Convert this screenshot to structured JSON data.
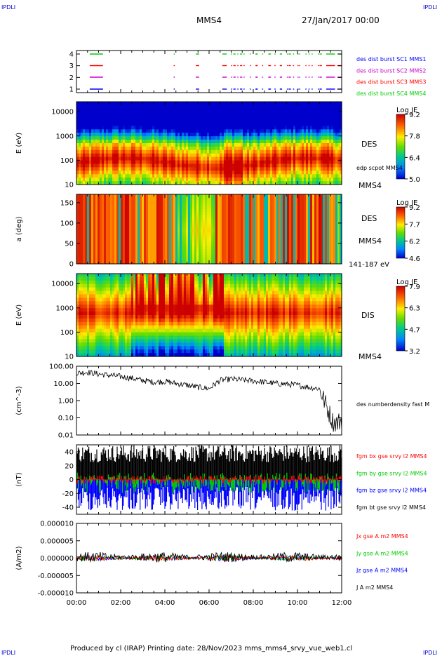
{
  "header": {
    "corner_tl": "IPDLI",
    "corner_tr": "IPDLI",
    "spacecraft": "MMS4",
    "datetime": "27/Jan/2017 00:00"
  },
  "footer": {
    "text": "Produced by cl (IRAP)   Printing date: 28/Nov/2023   mms_mms4_srvy_vue_web1.cl",
    "corner_bl": "IPDLI",
    "corner_br": "IPDLI"
  },
  "time_axis": {
    "ticks": [
      "00:00",
      "02:00",
      "04:00",
      "06:00",
      "08:00",
      "10:00",
      "12:00"
    ],
    "range_hours": [
      0,
      12
    ]
  },
  "colors": {
    "black": "#000000",
    "red": "#ff0000",
    "green": "#00cc00",
    "blue": "#0000ff",
    "magenta": "#cc00cc"
  },
  "chart_data": [
    {
      "type": "timeline",
      "panel": "burst",
      "yticks": [
        "4",
        "3",
        "2",
        "1"
      ],
      "legend": [
        {
          "label": "des dist burst SC1 MMS1",
          "color": "#0000ff"
        },
        {
          "label": "des dist burst SC2 MMS2",
          "color": "#cc00cc"
        },
        {
          "label": "des dist burst SC3 MMS3",
          "color": "#ff0000"
        },
        {
          "label": "des dist burst SC4 MMS4",
          "color": "#00cc00"
        }
      ],
      "segments_hours": [
        [
          0.6,
          1.2
        ],
        [
          4.4,
          4.45
        ],
        [
          5.4,
          5.55
        ],
        [
          6.6,
          6.8
        ],
        [
          7.1,
          7.2
        ],
        [
          7.4,
          7.5
        ],
        [
          8.1,
          8.2
        ],
        [
          8.7,
          8.8
        ],
        [
          9.2,
          9.3
        ],
        [
          9.6,
          9.7
        ],
        [
          10.0,
          10.05
        ],
        [
          10.5,
          10.55
        ],
        [
          11.0,
          11.1
        ],
        [
          11.3,
          11.7
        ],
        [
          11.8,
          12.0
        ]
      ]
    },
    {
      "type": "heatmap",
      "panel": "des-energy",
      "ylabel": "E (eV)",
      "yscale": "log",
      "ylim": [
        10,
        30000
      ],
      "yticks": [
        "10000",
        "1000",
        "100",
        "10"
      ],
      "label": "DES",
      "sublabel": "MMS4",
      "overlay_label": "edp scpot MMS4",
      "colorbar": {
        "title": "Log JE",
        "ticks": [
          "9.2",
          "7.8",
          "6.4",
          "5.0"
        ],
        "range": [
          5.0,
          9.2
        ]
      }
    },
    {
      "type": "heatmap",
      "panel": "des-pitch",
      "ylabel": "a (deg)",
      "ylim": [
        0,
        180
      ],
      "yticks": [
        "150",
        "100",
        "50",
        "0"
      ],
      "label": "DES",
      "sublabel": "MMS4",
      "energy_range": "141-187 eV",
      "colorbar": {
        "title": "Log JE",
        "ticks": [
          "9.2",
          "7.7",
          "6.2",
          "4.6"
        ],
        "range": [
          4.6,
          9.2
        ]
      }
    },
    {
      "type": "heatmap",
      "panel": "dis-energy",
      "ylabel": "E (eV)",
      "yscale": "log",
      "ylim": [
        10,
        30000
      ],
      "yticks": [
        "10000",
        "1000",
        "100",
        "10"
      ],
      "label": "DIS",
      "sublabel": "MMS4",
      "colorbar": {
        "title": "Log JE",
        "ticks": [
          "7.9",
          "6.3",
          "4.7",
          "3.2"
        ],
        "range": [
          3.2,
          7.9
        ]
      }
    },
    {
      "type": "line",
      "panel": "density",
      "ylabel": "(cm^-3)",
      "yscale": "log",
      "ylim": [
        0.01,
        100
      ],
      "yticks": [
        "100.00",
        "10.00",
        "1.00",
        "0.10",
        "0.01"
      ],
      "series": [
        {
          "name": "des numberdensity fast M",
          "color": "#000000",
          "x": [
            0,
            0.5,
            1.0,
            1.5,
            2.0,
            2.5,
            3.0,
            3.5,
            4.0,
            4.5,
            5.0,
            5.5,
            6.0,
            6.5,
            7.0,
            7.5,
            8.0,
            8.5,
            9.0,
            9.5,
            10.0,
            10.5,
            11.0,
            11.3,
            11.6,
            11.8,
            12.0
          ],
          "y": [
            40,
            45,
            35,
            30,
            25,
            20,
            15,
            12,
            13,
            10,
            8,
            6,
            5,
            15,
            18,
            16,
            14,
            12,
            10,
            9,
            8,
            6,
            5,
            0.5,
            0.06,
            0.05,
            0.08
          ]
        }
      ]
    },
    {
      "type": "line",
      "panel": "magnetic-field",
      "ylabel": "(nT)",
      "ylim": [
        -50,
        50
      ],
      "yticks": [
        "40",
        "20",
        "0",
        "-20",
        "-40"
      ],
      "series": [
        {
          "name": "fgm bx gse srvy l2 MMS4",
          "color": "#ff0000"
        },
        {
          "name": "fgm by gse srvy l2 MMS4",
          "color": "#00cc00"
        },
        {
          "name": "fgm bz gse srvy l2 MMS4",
          "color": "#0000ff"
        },
        {
          "name": "fgm bt gse srvy l2 MMS4",
          "color": "#000000"
        }
      ]
    },
    {
      "type": "line",
      "panel": "current",
      "ylabel": "(A/m2)",
      "ylim": [
        -1e-05,
        1e-05
      ],
      "yticks": [
        "0.000010",
        "0.000005",
        "0.000000",
        "-0.000005",
        "-0.000010"
      ],
      "series": [
        {
          "name": "Jx gse A m2 MMS4",
          "color": "#ff0000"
        },
        {
          "name": "Jy gse A m2 MMS4",
          "color": "#00cc00"
        },
        {
          "name": "Jz gse A m2 MMS4",
          "color": "#0000ff"
        },
        {
          "name": "J A m2 MMS4",
          "color": "#000000"
        }
      ]
    }
  ]
}
